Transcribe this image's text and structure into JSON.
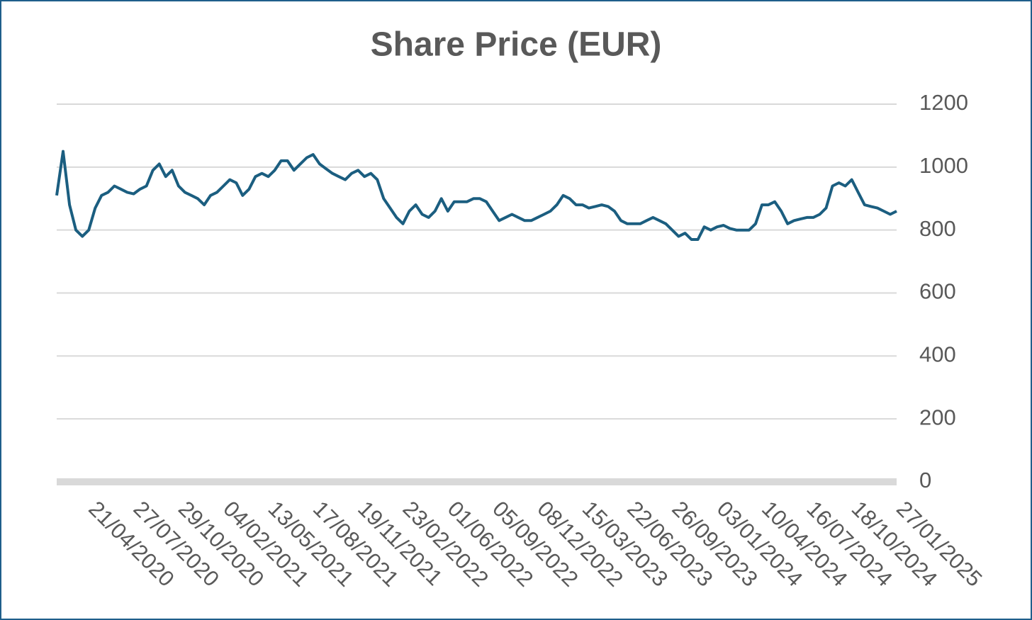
{
  "chart_data": {
    "type": "line",
    "title": "Share Price (EUR)",
    "categories": [
      null,
      null,
      null,
      null,
      null,
      "21/04/2020",
      null,
      null,
      null,
      null,
      null,
      null,
      "27/07/2020",
      null,
      null,
      null,
      null,
      null,
      null,
      "29/10/2020",
      null,
      null,
      null,
      null,
      null,
      null,
      "04/02/2021",
      null,
      null,
      null,
      null,
      null,
      null,
      "13/05/2021",
      null,
      null,
      null,
      null,
      null,
      null,
      "17/08/2021",
      null,
      null,
      null,
      null,
      null,
      null,
      "19/11/2021",
      null,
      null,
      null,
      null,
      null,
      null,
      "23/02/2022",
      null,
      null,
      null,
      null,
      null,
      null,
      "01/06/2022",
      null,
      null,
      null,
      null,
      null,
      null,
      "05/09/2022",
      null,
      null,
      null,
      null,
      null,
      null,
      "08/12/2022",
      null,
      null,
      null,
      null,
      null,
      null,
      "15/03/2023",
      null,
      null,
      null,
      null,
      null,
      null,
      "22/06/2023",
      null,
      null,
      null,
      null,
      null,
      null,
      "26/09/2023",
      null,
      null,
      null,
      null,
      null,
      null,
      "03/01/2024",
      null,
      null,
      null,
      null,
      null,
      null,
      "10/04/2024",
      null,
      null,
      null,
      null,
      null,
      null,
      "16/07/2024",
      null,
      null,
      null,
      null,
      null,
      null,
      "18/10/2024",
      null,
      null,
      null,
      null,
      null,
      null,
      "27/01/2025"
    ],
    "series": [
      {
        "name": "Share Price",
        "color": "#1b5e80",
        "values": [
          910,
          1050,
          880,
          800,
          780,
          800,
          870,
          910,
          920,
          940,
          930,
          920,
          915,
          930,
          940,
          990,
          1010,
          970,
          990,
          940,
          920,
          910,
          900,
          880,
          910,
          920,
          940,
          960,
          950,
          910,
          930,
          970,
          980,
          970,
          990,
          1020,
          1020,
          990,
          1010,
          1030,
          1040,
          1010,
          995,
          980,
          970,
          960,
          980,
          990,
          970,
          980,
          960,
          900,
          870,
          840,
          820,
          860,
          880,
          850,
          840,
          860,
          900,
          860,
          890,
          890,
          890,
          900,
          900,
          890,
          860,
          830,
          840,
          850,
          840,
          830,
          830,
          840,
          850,
          860,
          880,
          910,
          900,
          880,
          880,
          870,
          875,
          880,
          875,
          860,
          830,
          820,
          820,
          820,
          830,
          840,
          830,
          820,
          800,
          780,
          790,
          770,
          770,
          810,
          800,
          810,
          815,
          805,
          800,
          800,
          800,
          820,
          880,
          880,
          890,
          860,
          820,
          830,
          835,
          840,
          840,
          850,
          870,
          940,
          950,
          940,
          960,
          920,
          880,
          875,
          870,
          860,
          850,
          860
        ]
      }
    ],
    "ylim": [
      0,
      1200
    ],
    "yticks": [
      0,
      200,
      400,
      600,
      800,
      1000,
      1200
    ],
    "grid": true
  }
}
